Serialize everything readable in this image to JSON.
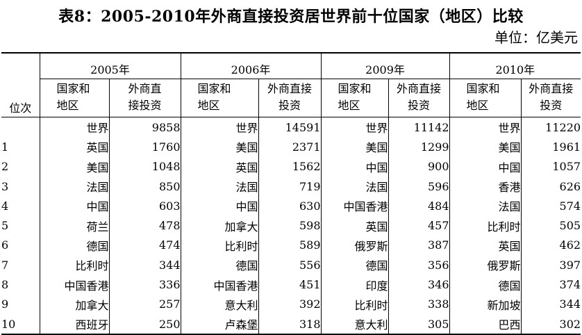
{
  "title": "表8：2005-2010年外商直接投资居世界前十位国家（地区）比较",
  "unit": "单位：亿美元",
  "headers": {
    "rank": "位次",
    "years": [
      "2005年",
      "2006年",
      "2009年",
      "2010年"
    ],
    "country_line1": "国家和",
    "country_line2": "地区",
    "fdi_line1": "外商直",
    "fdi_line2": "接投资",
    "fdi_line1_b": "外商直接",
    "fdi_line2_b": "投资"
  },
  "rows": [
    {
      "rank": "",
      "cells": [
        [
          "世界",
          "9858"
        ],
        [
          "世界",
          "14591"
        ],
        [
          "世界",
          "11142"
        ],
        [
          "世界",
          "11220"
        ]
      ]
    },
    {
      "rank": "1",
      "cells": [
        [
          "英国",
          "1760"
        ],
        [
          "美国",
          "2371"
        ],
        [
          "美国",
          "1299"
        ],
        [
          "美国",
          "1961"
        ]
      ]
    },
    {
      "rank": "2",
      "cells": [
        [
          "美国",
          "1048"
        ],
        [
          "英国",
          "1562"
        ],
        [
          "中国",
          "900"
        ],
        [
          "中国",
          "1057"
        ]
      ]
    },
    {
      "rank": "3",
      "cells": [
        [
          "法国",
          "850"
        ],
        [
          "法国",
          "719"
        ],
        [
          "法国",
          "596"
        ],
        [
          "香港",
          "626"
        ]
      ]
    },
    {
      "rank": "4",
      "cells": [
        [
          "中国",
          "603"
        ],
        [
          "中国",
          "630"
        ],
        [
          "中国香港",
          "484"
        ],
        [
          "法国",
          "574"
        ]
      ]
    },
    {
      "rank": "5",
      "cells": [
        [
          "荷兰",
          "478"
        ],
        [
          "加拿大",
          "598"
        ],
        [
          "英国",
          "457"
        ],
        [
          "比利时",
          "505"
        ]
      ]
    },
    {
      "rank": "6",
      "cells": [
        [
          "德国",
          "474"
        ],
        [
          "比利时",
          "589"
        ],
        [
          "俄罗斯",
          "387"
        ],
        [
          "英国",
          "462"
        ]
      ]
    },
    {
      "rank": "7",
      "cells": [
        [
          "比利时",
          "344"
        ],
        [
          "德国",
          "556"
        ],
        [
          "德国",
          "356"
        ],
        [
          "俄罗斯",
          "397"
        ]
      ]
    },
    {
      "rank": "8",
      "cells": [
        [
          "中国香港",
          "336"
        ],
        [
          "中国香港",
          "451"
        ],
        [
          "印度",
          "346"
        ],
        [
          "德国",
          "374"
        ]
      ]
    },
    {
      "rank": "9",
      "cells": [
        [
          "加拿大",
          "257"
        ],
        [
          "意大利",
          "392"
        ],
        [
          "比利时",
          "338"
        ],
        [
          "新加坡",
          "344"
        ]
      ]
    },
    {
      "rank": "10",
      "cells": [
        [
          "西班牙",
          "250"
        ],
        [
          "卢森堡",
          "318"
        ],
        [
          "意大利",
          "305"
        ],
        [
          "巴西",
          "302"
        ]
      ]
    }
  ]
}
